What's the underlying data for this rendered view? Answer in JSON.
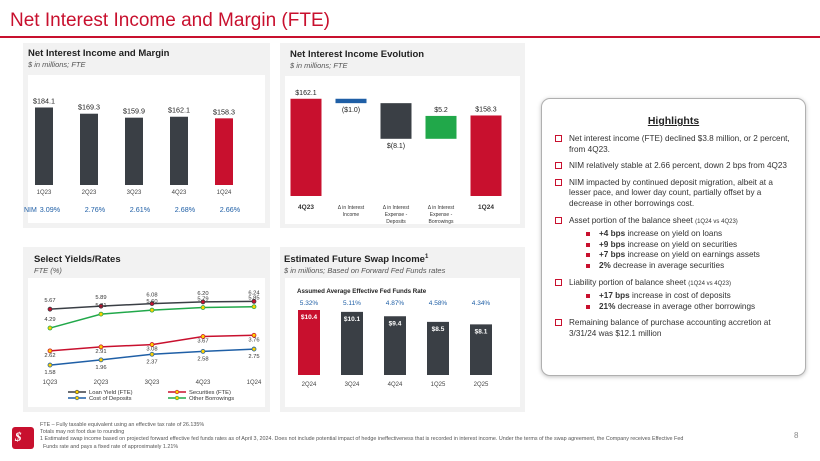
{
  "title": "Net Interest Income and Margin (FTE)",
  "colors": {
    "accent": "#c8102e",
    "dark": "#3a3f45",
    "blue": "#1f5fa6",
    "green": "#21a84a",
    "gray_line": "#6e6e6e"
  },
  "nii_margin": {
    "title": "Net Interest Income and Margin",
    "subtitle": "$ in millions; FTE",
    "nim_label": "NIM",
    "chart_data": {
      "type": "bar",
      "categories": [
        "1Q23",
        "2Q23",
        "3Q23",
        "4Q23",
        "1Q24"
      ],
      "values": [
        184.1,
        169.3,
        159.9,
        162.1,
        158.3
      ],
      "value_labels": [
        "$184.1",
        "$169.3",
        "$159.9",
        "$162.1",
        "$158.3"
      ],
      "nim": [
        "3.09%",
        "2.76%",
        "2.61%",
        "2.68%",
        "2.66%"
      ],
      "ylim": [
        0,
        190
      ]
    }
  },
  "nii_evolution": {
    "title": "Net Interest Income Evolution",
    "subtitle": "$ in millions; FTE",
    "chart_data": {
      "type": "bar",
      "categories": [
        "4Q23",
        "Δ in Interest Income",
        "Δ in Interest Expense - Deposits",
        "Δ in Interest Expense - Borrowings",
        "1Q24"
      ],
      "category_lines": [
        [
          "4Q23"
        ],
        [
          "Δ in Interest",
          "Income"
        ],
        [
          "Δ in Interest",
          "Expense -",
          "Deposits"
        ],
        [
          "Δ in Interest",
          "Expense -",
          "Borrowings"
        ],
        [
          "1Q24"
        ]
      ],
      "values": [
        162.1,
        -1.0,
        -8.1,
        5.2,
        158.3
      ],
      "value_labels": [
        "$162.1",
        "($1.0)",
        "$(8.1)",
        "$5.2",
        "$158.3"
      ],
      "ylim": [
        140,
        165
      ]
    }
  },
  "yields": {
    "title": "Select Yields/Rates",
    "subtitle": "FTE (%)",
    "chart_data": {
      "type": "line",
      "categories": [
        "1Q23",
        "2Q23",
        "3Q23",
        "4Q23",
        "1Q24"
      ],
      "series": [
        {
          "name": "Loan Yield (FTE)",
          "values": [
            5.67,
            5.89,
            6.08,
            6.2,
            6.24
          ],
          "labels": [
            "5.67",
            "5.89",
            "6.08",
            "6.20",
            "6.24"
          ]
        },
        {
          "name": "Securities (FTE)",
          "values": [
            2.62,
            2.91,
            3.08,
            3.67,
            3.76
          ],
          "labels": [
            "2.62",
            "2.91",
            "3.08",
            "3.67",
            "3.76"
          ]
        },
        {
          "name": "Cost of Deposits",
          "values": [
            1.58,
            1.96,
            2.37,
            2.58,
            2.75
          ],
          "labels": [
            "1.58",
            "1.96",
            "2.37",
            "2.58",
            "2.75"
          ]
        },
        {
          "name": "Other Borrowings",
          "values": [
            4.29,
            5.31,
            5.6,
            5.79,
            5.85
          ],
          "labels": [
            "4.29",
            "5.31",
            "5.60",
            "5.79",
            "5.85"
          ]
        }
      ],
      "ylim": [
        1,
        7
      ]
    }
  },
  "swap": {
    "title": "Estimated Future Swap Income",
    "title_sup": "1",
    "subtitle": "$ in millions; Based on Forward Fed Funds rates",
    "rate_label": "Assumed Average Effective Fed Funds Rate",
    "chart_data": {
      "type": "bar",
      "categories": [
        "2Q24",
        "3Q24",
        "4Q24",
        "1Q25",
        "2Q25"
      ],
      "values": [
        10.4,
        10.1,
        9.4,
        8.5,
        8.1
      ],
      "value_labels": [
        "$10.4",
        "$10.1",
        "$9.4",
        "$8.5",
        "$8.1"
      ],
      "rates": [
        "5.32%",
        "5.11%",
        "4.87%",
        "4.58%",
        "4.34%"
      ],
      "ylim": [
        0,
        12
      ]
    }
  },
  "highlights": {
    "title": "Highlights",
    "items": [
      {
        "text": "Net interest income (FTE) declined $3.8 million, or 2 percent, from 4Q23."
      },
      {
        "text": "NIM relatively stable at 2.66 percent, down 2 bps from 4Q23"
      },
      {
        "text": "NIM impacted by continued deposit migration, albeit at a lesser pace, and lower day count, partially offset by a decrease in other borrowings cost."
      },
      {
        "text": "Asset portion of the balance sheet",
        "small": "(1Q24 vs 4Q23)"
      },
      {
        "text": "Liability portion of balance sheet",
        "small": "(1Q24 vs 4Q23)"
      },
      {
        "text": "Remaining balance of purchase accounting accretion at 3/31/24 was $12.1 million"
      }
    ],
    "asset_subs": [
      {
        "bold": "+4 bps",
        "text": "increase on yield on loans"
      },
      {
        "bold": "+9 bps",
        "text": "increase on yield on securities"
      },
      {
        "bold": "+7 bps",
        "text": "increase on yield on earnings assets"
      },
      {
        "bold": "2%",
        "text": "decrease in average securities"
      }
    ],
    "liability_subs": [
      {
        "bold": "+17 bps",
        "text": "increase in cost of deposits"
      },
      {
        "bold": "21%",
        "text": "decrease in average other borrowings"
      }
    ]
  },
  "footnotes": [
    "FTE – Fully taxable equivalent using an effective tax rate of 26.135%",
    "Totals may not foot due to rounding",
    "1 Estimated swap income based on projected forward effective fed funds rates as of April 3, 2024. Does not include potential impact of hedge ineffectiveness that is recorded in interest income. Under the terms of the swap agreement, the Company receives Effective Fed",
    "Funds rate and pays a fixed rate of approximately 1.21%"
  ],
  "page_number": "8"
}
